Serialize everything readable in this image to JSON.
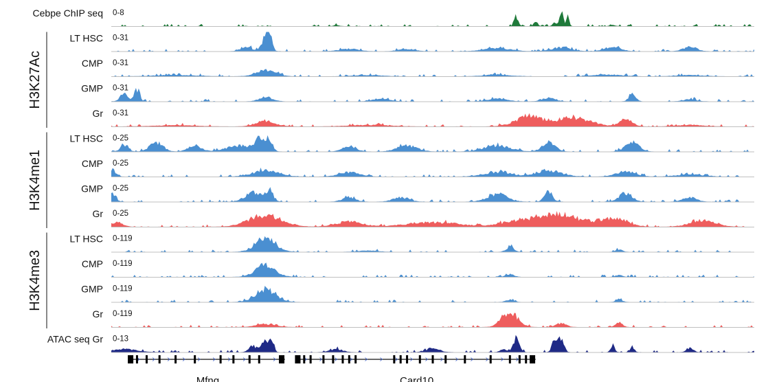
{
  "chart_data": {
    "type": "area",
    "title": "",
    "tracks": [
      {
        "name": "Cebpe ChIP seq",
        "group": "",
        "range": "0-8",
        "color": "#1f7a3a",
        "peaks": [
          [
            0.35,
            0.07,
            0.004
          ],
          [
            0.63,
            0.65,
            0.003
          ],
          [
            0.66,
            0.3,
            0.003
          ],
          [
            0.69,
            0.25,
            0.003
          ],
          [
            0.7,
            1.0,
            0.003
          ],
          [
            0.71,
            0.75,
            0.002
          ],
          [
            0.78,
            0.08,
            0.004
          ]
        ]
      },
      {
        "name": "LT HSC",
        "group": "H3K27Ac",
        "range": "0-31",
        "color": "#4a8fd1",
        "peaks": [
          [
            0.21,
            0.3,
            0.008
          ],
          [
            0.24,
            0.85,
            0.006
          ],
          [
            0.245,
            1.0,
            0.004
          ],
          [
            0.37,
            0.15,
            0.015
          ],
          [
            0.46,
            0.15,
            0.012
          ],
          [
            0.6,
            0.2,
            0.02
          ],
          [
            0.7,
            0.25,
            0.015
          ],
          [
            0.78,
            0.3,
            0.012
          ],
          [
            0.9,
            0.3,
            0.01
          ]
        ]
      },
      {
        "name": "CMP",
        "group": "H3K27Ac",
        "range": "0-31",
        "color": "#4a8fd1",
        "peaks": [
          [
            0.24,
            0.4,
            0.015
          ],
          [
            0.1,
            0.08,
            0.03
          ],
          [
            0.4,
            0.08,
            0.02
          ],
          [
            0.6,
            0.1,
            0.02
          ],
          [
            0.77,
            0.12,
            0.02
          ],
          [
            0.9,
            0.08,
            0.02
          ]
        ]
      },
      {
        "name": "GMP",
        "group": "H3K27Ac",
        "range": "0-31",
        "color": "#4a8fd1",
        "peaks": [
          [
            0.02,
            0.5,
            0.006
          ],
          [
            0.04,
            0.8,
            0.004
          ],
          [
            0.24,
            0.3,
            0.01
          ],
          [
            0.42,
            0.2,
            0.012
          ],
          [
            0.6,
            0.18,
            0.015
          ],
          [
            0.68,
            0.22,
            0.01
          ],
          [
            0.81,
            0.55,
            0.005
          ],
          [
            0.9,
            0.15,
            0.01
          ]
        ]
      },
      {
        "name": "Gr",
        "group": "H3K27Ac",
        "range": "0-31",
        "color": "#ee5d5d",
        "peaks": [
          [
            0.24,
            0.35,
            0.015
          ],
          [
            0.1,
            0.08,
            0.03
          ],
          [
            0.4,
            0.1,
            0.03
          ],
          [
            0.65,
            0.7,
            0.02
          ],
          [
            0.72,
            0.6,
            0.025
          ],
          [
            0.8,
            0.45,
            0.01
          ],
          [
            0.9,
            0.1,
            0.02
          ]
        ]
      },
      {
        "name": "LT HSC",
        "group": "H3K4me1",
        "range": "0-25",
        "color": "#4a8fd1",
        "peaks": [
          [
            0.02,
            0.4,
            0.006
          ],
          [
            0.07,
            0.6,
            0.01
          ],
          [
            0.13,
            0.4,
            0.01
          ],
          [
            0.2,
            0.4,
            0.02
          ],
          [
            0.23,
            0.8,
            0.006
          ],
          [
            0.245,
            0.9,
            0.005
          ],
          [
            0.37,
            0.4,
            0.01
          ],
          [
            0.46,
            0.4,
            0.015
          ],
          [
            0.6,
            0.4,
            0.02
          ],
          [
            0.68,
            0.6,
            0.01
          ],
          [
            0.81,
            0.7,
            0.01
          ]
        ]
      },
      {
        "name": "CMP",
        "group": "H3K4me1",
        "range": "0-25",
        "color": "#4a8fd1",
        "peaks": [
          [
            0.0,
            0.5,
            0.006
          ],
          [
            0.24,
            0.4,
            0.02
          ],
          [
            0.37,
            0.3,
            0.015
          ],
          [
            0.6,
            0.3,
            0.02
          ],
          [
            0.68,
            0.4,
            0.02
          ],
          [
            0.8,
            0.35,
            0.015
          ],
          [
            0.9,
            0.15,
            0.02
          ]
        ]
      },
      {
        "name": "GMP",
        "group": "H3K4me1",
        "range": "0-25",
        "color": "#4a8fd1",
        "peaks": [
          [
            0.0,
            0.6,
            0.006
          ],
          [
            0.22,
            0.6,
            0.012
          ],
          [
            0.245,
            0.8,
            0.006
          ],
          [
            0.37,
            0.3,
            0.01
          ],
          [
            0.45,
            0.3,
            0.012
          ],
          [
            0.6,
            0.5,
            0.015
          ],
          [
            0.68,
            0.7,
            0.006
          ],
          [
            0.8,
            0.6,
            0.01
          ],
          [
            0.9,
            0.3,
            0.01
          ]
        ]
      },
      {
        "name": "Gr",
        "group": "H3K4me1",
        "range": "0-25",
        "color": "#ee5d5d",
        "peaks": [
          [
            0.01,
            0.3,
            0.008
          ],
          [
            0.24,
            0.8,
            0.025
          ],
          [
            0.37,
            0.35,
            0.02
          ],
          [
            0.5,
            0.3,
            0.04
          ],
          [
            0.64,
            0.4,
            0.03
          ],
          [
            0.7,
            0.8,
            0.03
          ],
          [
            0.78,
            0.6,
            0.02
          ],
          [
            0.92,
            0.4,
            0.02
          ]
        ]
      },
      {
        "name": "LT HSC",
        "group": "H3K4me3",
        "range": "0-119",
        "color": "#4a8fd1",
        "peaks": [
          [
            0.24,
            0.9,
            0.015
          ],
          [
            0.4,
            0.08,
            0.015
          ],
          [
            0.62,
            0.3,
            0.006
          ],
          [
            0.79,
            0.15,
            0.005
          ]
        ]
      },
      {
        "name": "CMP",
        "group": "H3K4me3",
        "range": "0-119",
        "color": "#4a8fd1",
        "peaks": [
          [
            0.24,
            0.8,
            0.015
          ],
          [
            0.62,
            0.2,
            0.006
          ],
          [
            0.79,
            0.12,
            0.005
          ]
        ]
      },
      {
        "name": "GMP",
        "group": "H3K4me3",
        "range": "0-119",
        "color": "#4a8fd1",
        "peaks": [
          [
            0.24,
            0.85,
            0.015
          ],
          [
            0.62,
            0.15,
            0.006
          ],
          [
            0.79,
            0.15,
            0.005
          ]
        ]
      },
      {
        "name": "Gr",
        "group": "H3K4me3",
        "range": "0-119",
        "color": "#ee5d5d",
        "peaks": [
          [
            0.24,
            0.2,
            0.015
          ],
          [
            0.62,
            1.0,
            0.012
          ],
          [
            0.7,
            0.25,
            0.008
          ],
          [
            0.79,
            0.35,
            0.005
          ]
        ]
      },
      {
        "name": "ATAC seq Gr",
        "group": "",
        "range": "0-13",
        "color": "#1f2a86",
        "peaks": [
          [
            0.02,
            0.2,
            0.02
          ],
          [
            0.22,
            0.4,
            0.006
          ],
          [
            0.24,
            0.75,
            0.006
          ],
          [
            0.25,
            0.8,
            0.003
          ],
          [
            0.35,
            0.2,
            0.01
          ],
          [
            0.5,
            0.25,
            0.01
          ],
          [
            0.61,
            0.2,
            0.005
          ],
          [
            0.63,
            0.95,
            0.005
          ],
          [
            0.69,
            0.95,
            0.004
          ],
          [
            0.7,
            0.9,
            0.004
          ],
          [
            0.78,
            0.5,
            0.003
          ],
          [
            0.81,
            0.4,
            0.003
          ],
          [
            0.9,
            0.3,
            0.005
          ]
        ]
      }
    ],
    "groups": [
      {
        "name": "H3K27Ac",
        "tracks": [
          1,
          2,
          3,
          4
        ]
      },
      {
        "name": "H3K4me1",
        "tracks": [
          5,
          6,
          7,
          8
        ]
      },
      {
        "name": "H3K4me3",
        "tracks": [
          9,
          10,
          11,
          12
        ]
      }
    ],
    "genes": [
      {
        "name": "Mfng",
        "start": 0.03,
        "end": 0.27,
        "exons": [
          0.03,
          0.04,
          0.055,
          0.075,
          0.1,
          0.13,
          0.17,
          0.19,
          0.215,
          0.23,
          0.265
        ]
      },
      {
        "name": "Card10",
        "start": 0.29,
        "end": 0.66,
        "exons": [
          0.29,
          0.3,
          0.31,
          0.33,
          0.345,
          0.36,
          0.37,
          0.38,
          0.44,
          0.45,
          0.46,
          0.48,
          0.5,
          0.52,
          0.55,
          0.59,
          0.62,
          0.635,
          0.645,
          0.655
        ]
      }
    ],
    "x_domain": [
      0,
      1
    ],
    "xlabel": "",
    "ylabel": ""
  }
}
